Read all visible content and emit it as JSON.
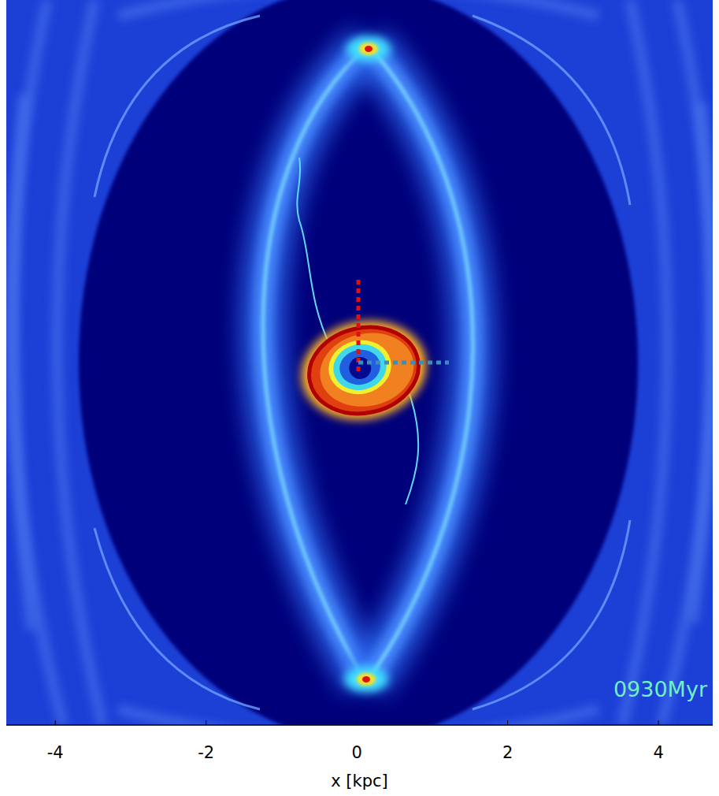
{
  "chart_data": {
    "type": "map",
    "xlabel": "x [kpc]",
    "xlim": [
      -4.65,
      4.72
    ],
    "xticks": [
      -4,
      -2,
      0,
      2,
      4
    ],
    "annotation": "0930Myr",
    "tick_labels": "x"
  }
}
